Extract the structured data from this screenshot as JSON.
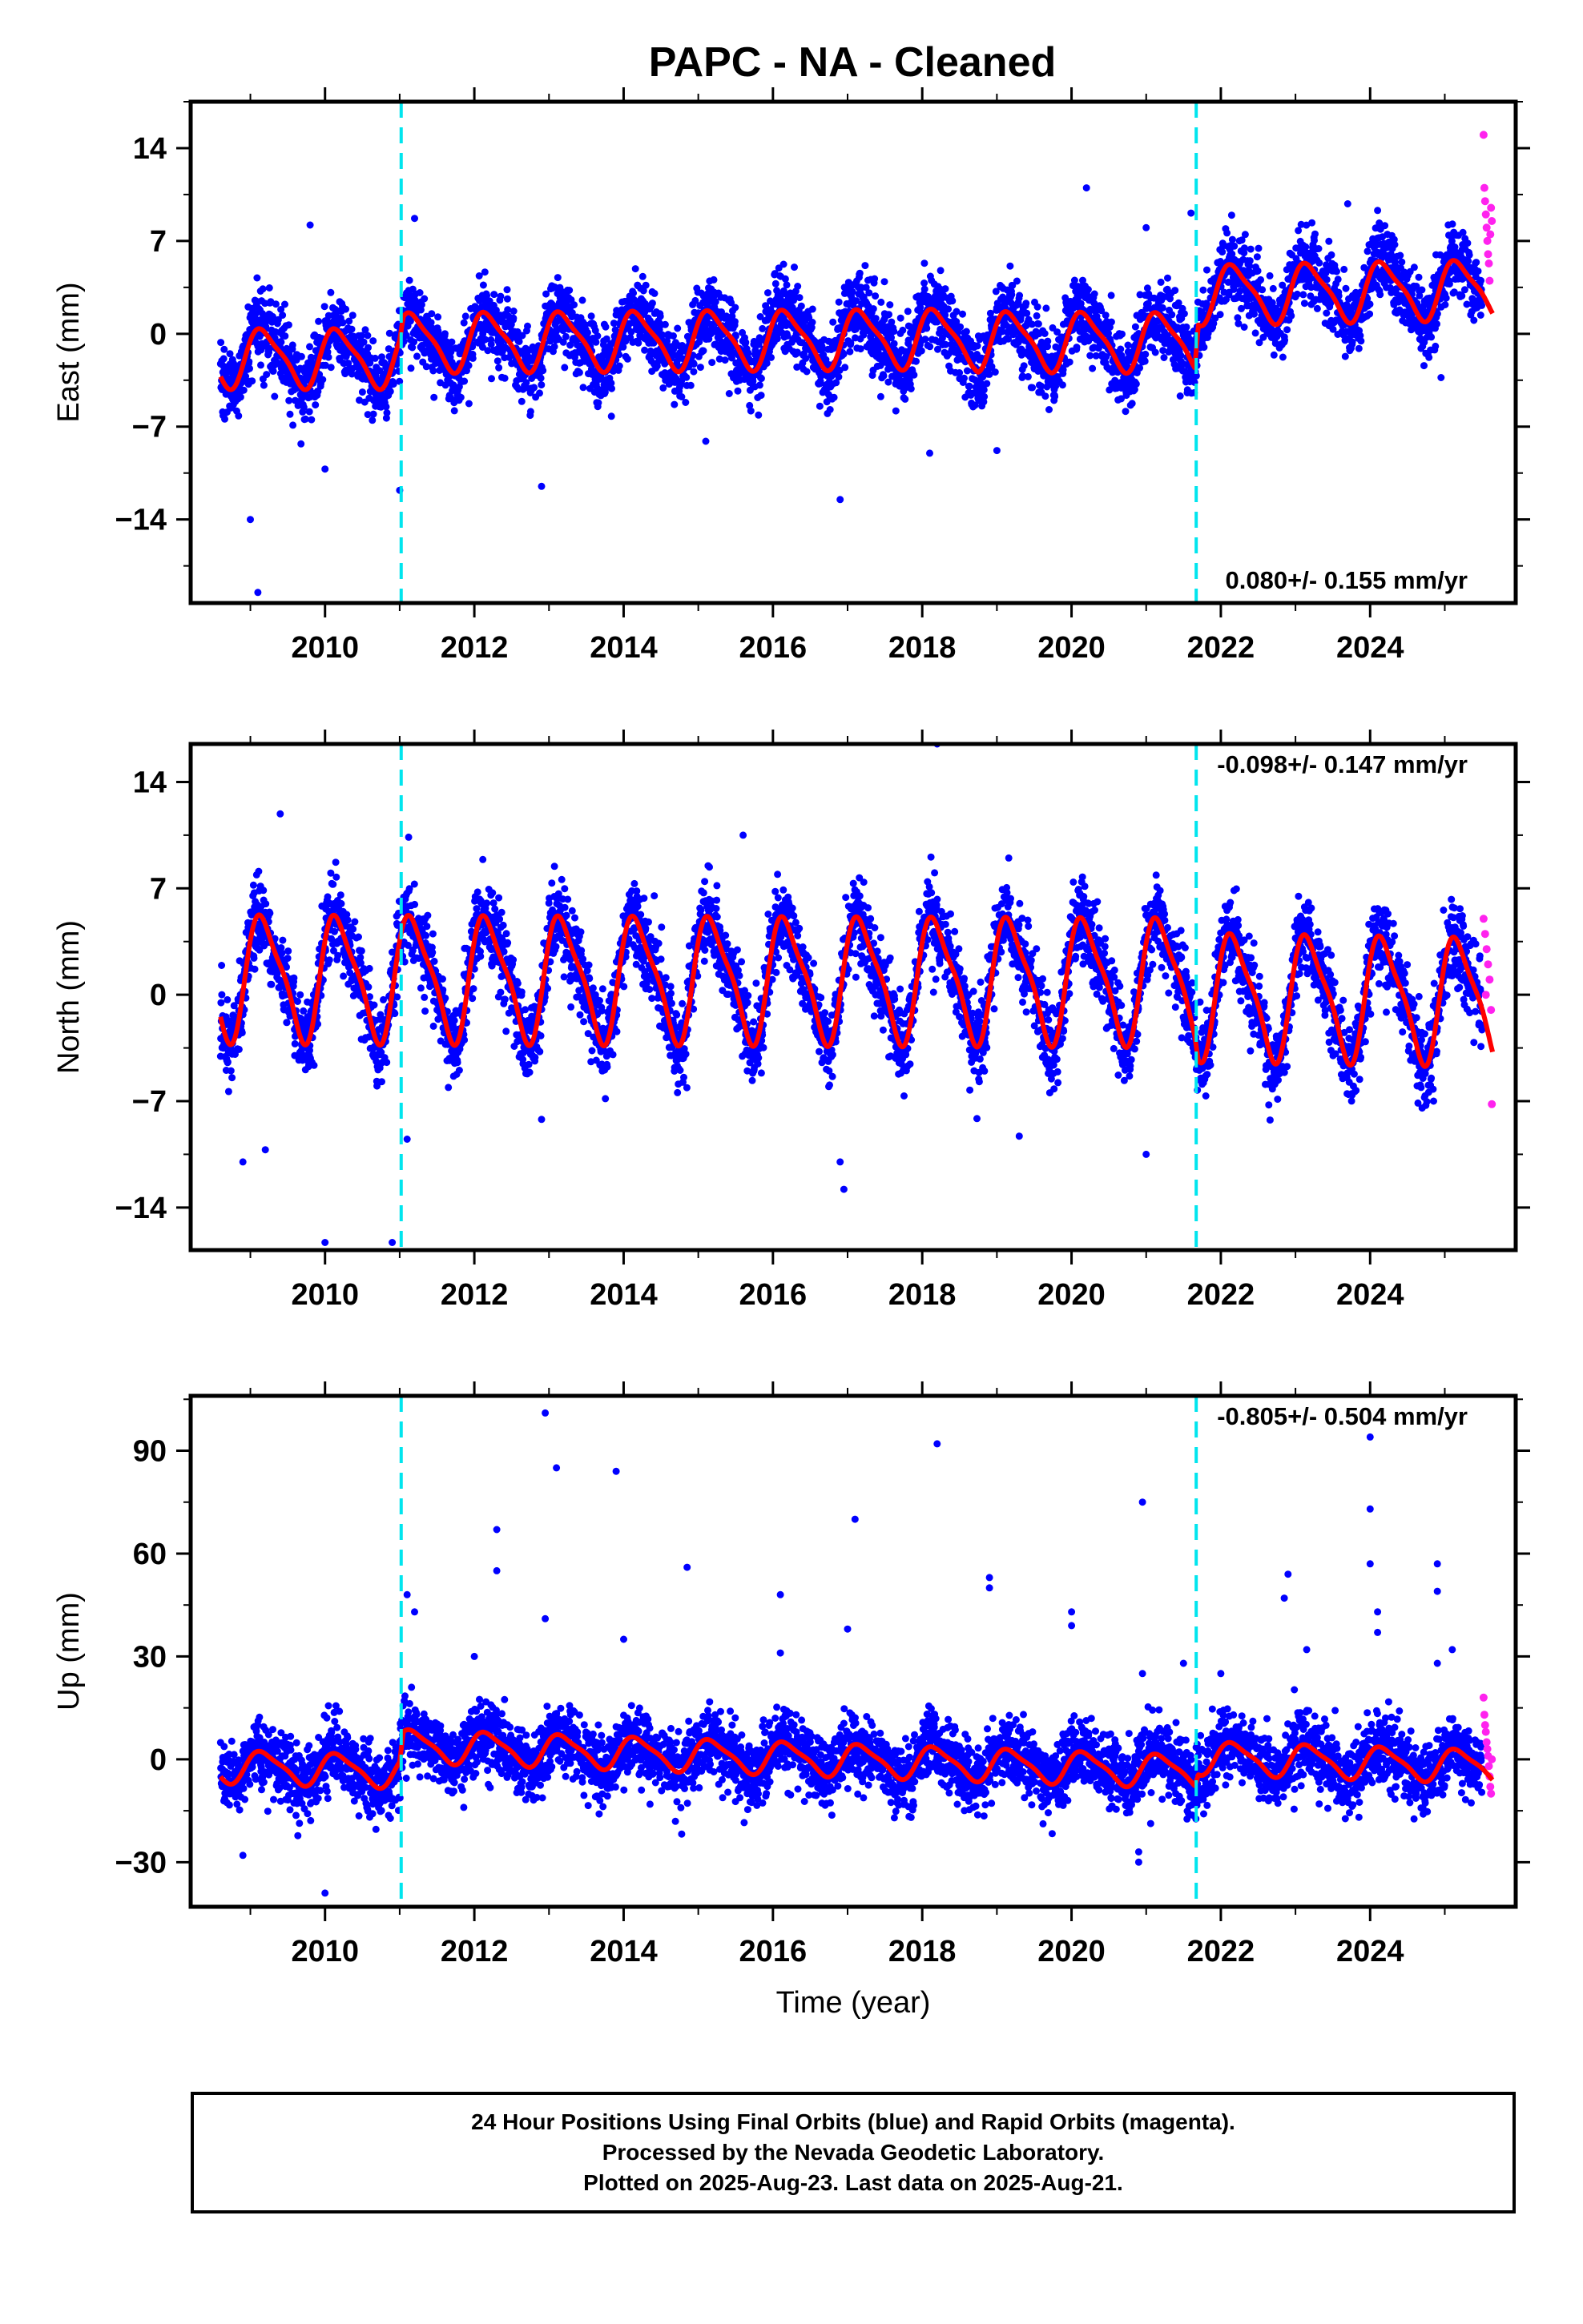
{
  "title": "PAPC  - NA - Cleaned",
  "colors": {
    "final_orbits": "#0000ff",
    "rapid_orbits": "#ff22ee",
    "model": "#ff0000",
    "breaks": "#00e5ee",
    "frame": "#000000"
  },
  "caption": {
    "line1": "24 Hour Positions Using Final Orbits (blue) and Rapid Orbits (magenta).",
    "line2": "Processed by the Nevada Geodetic Laboratory.",
    "line3": "Plotted on 2025-Aug-23. Last data on 2025-Aug-21."
  },
  "chart_data": [
    {
      "type": "scatter",
      "name": "east",
      "ylabel": "East (mm)",
      "xlabel": "",
      "xlim": [
        2008.2,
        2025.95
      ],
      "ylim": [
        -20.3,
        17.5
      ],
      "yticks": [
        -14,
        -7,
        0,
        7,
        14
      ],
      "xticks": [
        2010,
        2012,
        2014,
        2016,
        2018,
        2020,
        2022,
        2024
      ],
      "velocity_label": "0.080+/- 0.155 mm/yr",
      "velocity_position": "bottom-right",
      "equipment_breaks": [
        2011.02,
        2021.67
      ],
      "data_start": 2008.6,
      "data_end": 2025.64,
      "rapid_start": 2025.5,
      "seasonal_amplitude": 2.1,
      "scatter_sigma": 1.4,
      "trend_nodes": [
        [
          2008.6,
          -1.8
        ],
        [
          2011.0,
          -1.8
        ],
        [
          2011.05,
          -0.6
        ],
        [
          2018.7,
          -0.3
        ],
        [
          2018.75,
          -0.5
        ],
        [
          2021.65,
          -0.6
        ],
        [
          2021.7,
          3.0
        ],
        [
          2025.64,
          3.4
        ]
      ],
      "outliers": [
        [
          2009.0,
          -14.0
        ],
        [
          2009.1,
          -19.5
        ],
        [
          2009.8,
          8.2
        ],
        [
          2010.0,
          -10.2
        ],
        [
          2011.0,
          -11.8
        ],
        [
          2011.2,
          8.7
        ],
        [
          2012.9,
          -11.5
        ],
        [
          2015.1,
          -8.1
        ],
        [
          2016.9,
          -12.5
        ],
        [
          2018.1,
          -9.0
        ],
        [
          2019.0,
          -8.8
        ],
        [
          2020.2,
          11.0
        ],
        [
          2021.0,
          8.0
        ],
        [
          2021.6,
          9.1
        ],
        [
          2023.7,
          9.8
        ],
        [
          2024.1,
          9.3
        ],
        [
          2024.95,
          -3.3
        ]
      ],
      "rapid_points": [
        [
          2025.52,
          15.0
        ],
        [
          2025.53,
          11.0
        ],
        [
          2025.54,
          10.0
        ],
        [
          2025.55,
          9.0
        ],
        [
          2025.56,
          8.0
        ],
        [
          2025.57,
          7.0
        ],
        [
          2025.58,
          6.0
        ],
        [
          2025.59,
          5.3
        ],
        [
          2025.6,
          4.0
        ],
        [
          2025.61,
          7.5
        ],
        [
          2025.62,
          9.5
        ],
        [
          2025.63,
          8.5
        ]
      ]
    },
    {
      "type": "scatter",
      "name": "north",
      "ylabel": "North (mm)",
      "xlabel": "",
      "xlim": [
        2008.2,
        2025.95
      ],
      "ylim": [
        -16.8,
        16.5
      ],
      "yticks": [
        -14,
        -7,
        0,
        7,
        14
      ],
      "xticks": [
        2010,
        2012,
        2014,
        2016,
        2018,
        2020,
        2022,
        2024
      ],
      "velocity_label": "-0.098+/- 0.147 mm/yr",
      "velocity_position": "top-right",
      "equipment_breaks": [
        2011.02,
        2021.67
      ],
      "data_start": 2008.6,
      "data_end": 2025.64,
      "rapid_start": 2025.5,
      "seasonal_amplitude": 3.9,
      "scatter_sigma": 1.3,
      "trend_nodes": [
        [
          2008.6,
          1.2
        ],
        [
          2021.65,
          1.0
        ],
        [
          2021.7,
          0.0
        ],
        [
          2025.64,
          -0.3
        ]
      ],
      "outliers": [
        [
          2008.9,
          -11.0
        ],
        [
          2009.2,
          -10.2
        ],
        [
          2009.4,
          11.9
        ],
        [
          2010.0,
          -16.3
        ],
        [
          2010.9,
          -16.3
        ],
        [
          2011.1,
          -9.5
        ],
        [
          2012.9,
          -8.2
        ],
        [
          2016.95,
          -12.8
        ],
        [
          2016.9,
          -11.0
        ],
        [
          2018.2,
          16.5
        ],
        [
          2019.3,
          -9.3
        ],
        [
          2021.0,
          -10.5
        ],
        [
          2015.6,
          10.5
        ]
      ],
      "rapid_points": [
        [
          2025.52,
          5.0
        ],
        [
          2025.54,
          4.0
        ],
        [
          2025.56,
          3.0
        ],
        [
          2025.58,
          2.0
        ],
        [
          2025.6,
          1.0
        ],
        [
          2025.62,
          -1.0
        ],
        [
          2025.63,
          -7.2
        ],
        [
          2025.55,
          0.0
        ]
      ]
    },
    {
      "type": "scatter",
      "name": "up",
      "ylabel": "Up (mm)",
      "xlabel": "Time (year)",
      "xlim": [
        2008.2,
        2025.95
      ],
      "ylim": [
        -43,
        106
      ],
      "yticks": [
        -30,
        0,
        30,
        60,
        90
      ],
      "xticks": [
        2010,
        2012,
        2014,
        2016,
        2018,
        2020,
        2022,
        2024
      ],
      "velocity_label": "-0.805+/- 0.504 mm/yr",
      "velocity_position": "top-right",
      "equipment_breaks": [
        2011.02,
        2021.67
      ],
      "data_start": 2008.6,
      "data_end": 2025.64,
      "rapid_start": 2025.5,
      "seasonal_amplitude": 4.5,
      "scatter_sigma": 5.0,
      "trend_nodes": [
        [
          2008.6,
          -2.0
        ],
        [
          2011.0,
          -3.5
        ],
        [
          2011.05,
          4.0
        ],
        [
          2021.65,
          -3.5
        ],
        [
          2021.7,
          0.5
        ],
        [
          2025.64,
          -2.0
        ]
      ],
      "outliers": [
        [
          2008.9,
          -28
        ],
        [
          2010.0,
          -39
        ],
        [
          2011.1,
          48
        ],
        [
          2011.2,
          43
        ],
        [
          2012.0,
          30
        ],
        [
          2012.3,
          67
        ],
        [
          2012.3,
          55
        ],
        [
          2012.95,
          101
        ],
        [
          2012.95,
          41
        ],
        [
          2013.1,
          85
        ],
        [
          2013.9,
          84
        ],
        [
          2014.0,
          35
        ],
        [
          2014.85,
          56
        ],
        [
          2016.1,
          48
        ],
        [
          2016.1,
          31
        ],
        [
          2017.0,
          38
        ],
        [
          2017.1,
          70
        ],
        [
          2018.2,
          92
        ],
        [
          2018.9,
          53
        ],
        [
          2018.9,
          50
        ],
        [
          2020.0,
          43
        ],
        [
          2020.0,
          39
        ],
        [
          2020.95,
          75
        ],
        [
          2020.95,
          25
        ],
        [
          2020.9,
          -30
        ],
        [
          2020.9,
          -27
        ],
        [
          2021.5,
          28
        ],
        [
          2022.0,
          25
        ],
        [
          2022.9,
          54
        ],
        [
          2022.85,
          47
        ],
        [
          2023.15,
          32
        ],
        [
          2024.0,
          94
        ],
        [
          2024.0,
          73
        ],
        [
          2024.0,
          57
        ],
        [
          2024.1,
          43
        ],
        [
          2024.1,
          37
        ],
        [
          2024.9,
          57
        ],
        [
          2024.9,
          49
        ],
        [
          2024.9,
          28
        ],
        [
          2025.1,
          32
        ]
      ],
      "rapid_points": [
        [
          2025.52,
          18
        ],
        [
          2025.53,
          13
        ],
        [
          2025.54,
          10
        ],
        [
          2025.55,
          8
        ],
        [
          2025.56,
          5
        ],
        [
          2025.57,
          3
        ],
        [
          2025.58,
          1
        ],
        [
          2025.59,
          -2
        ],
        [
          2025.6,
          -5
        ],
        [
          2025.61,
          -8
        ],
        [
          2025.62,
          -10
        ],
        [
          2025.63,
          0
        ]
      ]
    }
  ]
}
